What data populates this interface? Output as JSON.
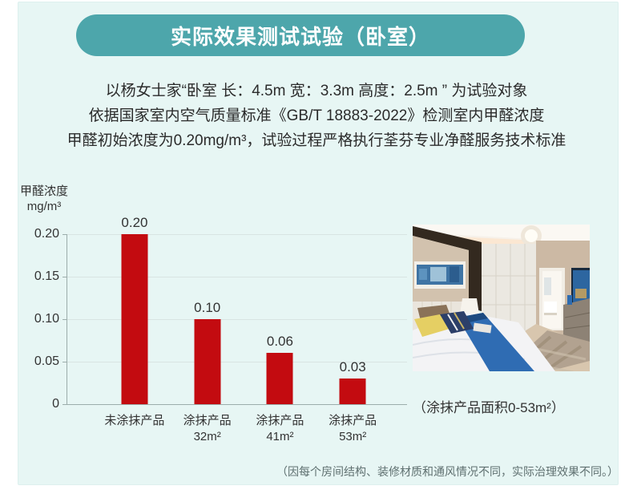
{
  "page": {
    "title": "实际效果测试试验（卧室）",
    "intro_lines": [
      "以杨女士家“卧室 长：4.5m 宽：3.3m 高度：2.5m ” 为试验对象",
      "依据国家室内空气质量标准《GB/T 18883-2022》检测室内甲醛浓度",
      "甲醛初始浓度为0.20mg/m³，试验过程严格执行荃芬专业净醛服务技术标准"
    ],
    "photo_caption": "（涂抹产品面积0-53m²）",
    "footer_note": "（因每个房间结构、装修材质和通风情况不同，实际治理效果不同。）"
  },
  "chart_data": {
    "type": "bar",
    "title": "",
    "ylabel_line1": "甲醛浓度",
    "ylabel_line2": "mg/m³",
    "categories": [
      "未涂抹产品",
      "涂抹产品\n32m²",
      "涂抹产品\n41m²",
      "涂抹产品\n53m²"
    ],
    "values": [
      0.2,
      0.1,
      0.06,
      0.03
    ],
    "value_labels": [
      "0.20",
      "0.10",
      "0.06",
      "0.03"
    ],
    "yticks": [
      0.2,
      0.15,
      0.1,
      0.05,
      0
    ],
    "ytick_labels": [
      "0.20",
      "0.15",
      "0.10",
      "0.05",
      "0"
    ],
    "ylim": [
      0,
      0.2
    ],
    "grid": true,
    "legend": "none",
    "bar_color": "#c30b10"
  },
  "colors": {
    "accent_teal": "#4da6ab",
    "bar_red": "#c30b10",
    "panel_bg": "#e7f6f4"
  }
}
